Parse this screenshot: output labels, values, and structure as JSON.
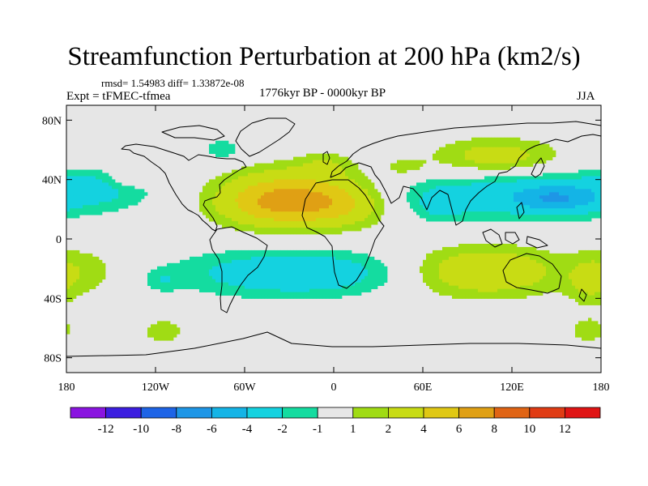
{
  "title": "Streamfunction Perturbation at 200 hPa (km2/s)",
  "stats_line": "rmsd= 1.54983 diff= 1.33872e-08",
  "left_subtitle": "Expt = tFMEC-tfmea",
  "center_subtitle": "1776kyr BP - 0000kyr BP",
  "right_subtitle": "JJA",
  "chart_data": {
    "type": "heatmap",
    "projection": "cylindrical-equidistant",
    "variable": "Streamfunction Perturbation at 200 hPa",
    "units": "km2/s",
    "season": "JJA",
    "xlim": [
      -180,
      180
    ],
    "ylim": [
      -90,
      90
    ],
    "x_ticks": [
      {
        "value": -180,
        "label": "180"
      },
      {
        "value": -120,
        "label": "120W"
      },
      {
        "value": -60,
        "label": "60W"
      },
      {
        "value": 0,
        "label": "0"
      },
      {
        "value": 60,
        "label": "60E"
      },
      {
        "value": 120,
        "label": "120E"
      },
      {
        "value": 180,
        "label": "180"
      }
    ],
    "y_ticks": [
      {
        "value": 80,
        "label": "80N"
      },
      {
        "value": 40,
        "label": "40N"
      },
      {
        "value": 0,
        "label": "0"
      },
      {
        "value": -40,
        "label": "40S"
      },
      {
        "value": -80,
        "label": "80S"
      }
    ],
    "contour_levels": [
      -12,
      -10,
      -8,
      -6,
      -4,
      -2,
      -1,
      1,
      2,
      4,
      6,
      8,
      10,
      12
    ],
    "colorbar_labels": [
      "-12",
      "-10",
      "-8",
      "-6",
      "-4",
      "-2",
      "-1",
      "1",
      "2",
      "4",
      "6",
      "8",
      "10",
      "12"
    ],
    "colors": [
      "#8a14e0",
      "#3c1ee0",
      "#1e64e6",
      "#1e96e6",
      "#14b4e6",
      "#14d2e0",
      "#14dca0",
      "#e6e6e6",
      "#a0dc14",
      "#c8dc14",
      "#e0c814",
      "#e0a014",
      "#e06414",
      "#e03c14",
      "#e01414"
    ],
    "field_anomalies": [
      {
        "lon": -28,
        "lat": 28,
        "slon": 34,
        "slat": 13,
        "value": 5.5
      },
      {
        "lon": 8,
        "lat": 22,
        "slon": 20,
        "slat": 10,
        "value": 2.0
      },
      {
        "lon": -40,
        "lat": 22,
        "slon": 26,
        "slat": 10,
        "value": 2.0
      },
      {
        "lon": -5,
        "lat": 50,
        "slon": 14,
        "slat": 6,
        "value": 1.4
      },
      {
        "lon": 48,
        "lat": 48,
        "slon": 12,
        "slat": 5,
        "value": 1.4
      },
      {
        "lon": 110,
        "lat": 55,
        "slon": 30,
        "slat": 9,
        "value": 3.0
      },
      {
        "lon": 128,
        "lat": 30,
        "slon": 62,
        "slat": 12,
        "value": -3.2
      },
      {
        "lon": 150,
        "lat": 27,
        "slon": 18,
        "slat": 6,
        "value": -3.5
      },
      {
        "lon": 72,
        "lat": 22,
        "slon": 12,
        "slat": 7,
        "value": -1.5
      },
      {
        "lon": -158,
        "lat": 35,
        "slon": 22,
        "slat": 8,
        "value": -1.5
      },
      {
        "lon": -75,
        "lat": 60,
        "slon": 10,
        "slat": 6,
        "value": -1.6
      },
      {
        "lon": -140,
        "lat": 40,
        "slon": 10,
        "slat": 5,
        "value": 1.4
      },
      {
        "lon": -25,
        "lat": -23,
        "slon": 55,
        "slat": 11,
        "value": -3.6
      },
      {
        "lon": 100,
        "lat": -22,
        "slon": 38,
        "slat": 12,
        "value": 3.8
      },
      {
        "lon": -168,
        "lat": -22,
        "slon": 18,
        "slat": 12,
        "value": 1.6
      },
      {
        "lon": 172,
        "lat": -30,
        "slon": 10,
        "slat": 12,
        "value": 1.6
      },
      {
        "lon": -115,
        "lat": -62,
        "slon": 12,
        "slat": 7,
        "value": 1.5
      },
      {
        "lon": 172,
        "lat": -62,
        "slon": 12,
        "slat": 7,
        "value": 1.4
      },
      {
        "lon": -115,
        "lat": -28,
        "slon": 8,
        "slat": 5,
        "value": -1.3
      }
    ]
  }
}
